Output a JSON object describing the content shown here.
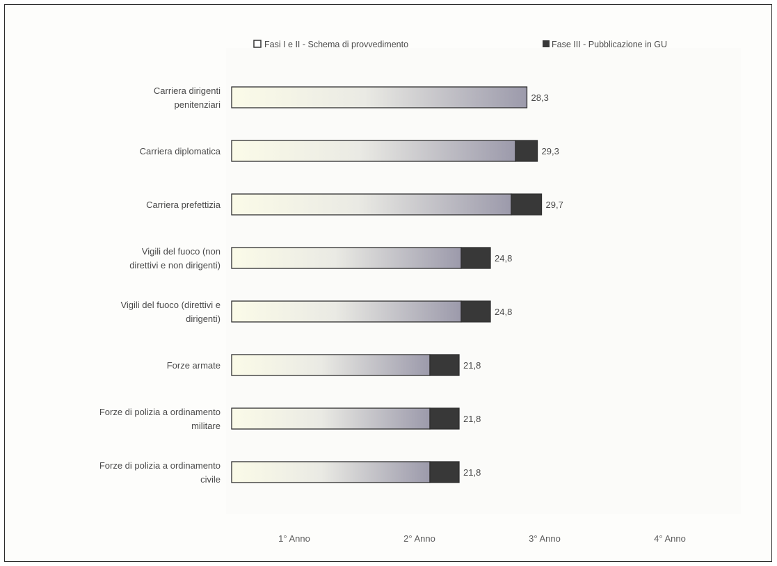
{
  "chart_data": {
    "type": "bar",
    "orientation": "horizontal",
    "stacked": true,
    "categories": [
      "Carriera dirigenti penitenziari",
      "Carriera diplomatica",
      "Carriera prefettizia",
      "Vigili del fuoco (non direttivi e non dirigenti)",
      "Vigili del fuoco (direttivi e dirigenti)",
      "Forze armate",
      "Forze di polizia a ordinamento militare",
      "Forze di polizia a ordinamento civile"
    ],
    "series": [
      {
        "name": "Fasi I e II - Schema di provvedimento",
        "values": [
          28.3,
          27.2,
          26.8,
          22.0,
          22.0,
          19.0,
          19.0,
          19.0
        ]
      },
      {
        "name": "Fase III - Pubblicazione in GU",
        "values": [
          0.0,
          2.1,
          2.9,
          2.8,
          2.8,
          2.8,
          2.8,
          2.8
        ]
      }
    ],
    "totals_labels": [
      "28,3",
      "29,3",
      "29,7",
      "24,8",
      "24,8",
      "21,8",
      "21,8",
      "21,8"
    ],
    "x_ticks": [
      "1° Anno",
      "2° Anno",
      "3° Anno",
      "4° Anno"
    ],
    "xlim": [
      0,
      48
    ],
    "title": "",
    "xlabel": "",
    "ylabel": "",
    "grid": false,
    "legend_position": "top",
    "colors": {
      "phase12_start": "#fbfbe8",
      "phase12_mid": "#eaeae4",
      "phase12_end": "#9c9aab",
      "phase3": "#383838",
      "bar_border": "#2f2f2f",
      "text": "#4a4a4a"
    }
  }
}
